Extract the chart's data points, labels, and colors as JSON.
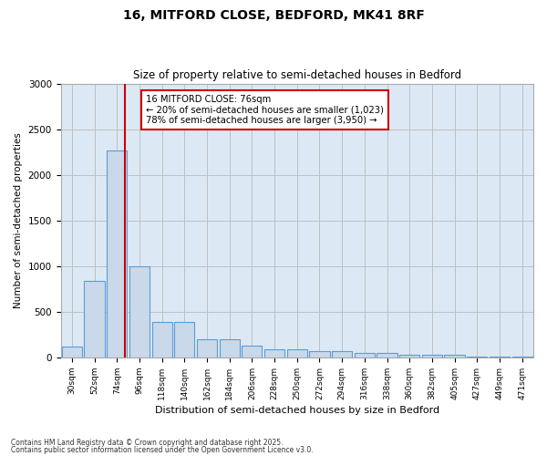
{
  "title_line1": "16, MITFORD CLOSE, BEDFORD, MK41 8RF",
  "title_line2": "Size of property relative to semi-detached houses in Bedford",
  "xlabel": "Distribution of semi-detached houses by size in Bedford",
  "ylabel": "Number of semi-detached properties",
  "categories": [
    "30sqm",
    "52sqm",
    "74sqm",
    "96sqm",
    "118sqm",
    "140sqm",
    "162sqm",
    "184sqm",
    "206sqm",
    "228sqm",
    "250sqm",
    "272sqm",
    "294sqm",
    "316sqm",
    "338sqm",
    "360sqm",
    "382sqm",
    "405sqm",
    "427sqm",
    "449sqm",
    "471sqm"
  ],
  "values": [
    120,
    840,
    2270,
    1000,
    390,
    390,
    200,
    200,
    130,
    90,
    90,
    70,
    70,
    50,
    50,
    30,
    30,
    30,
    10,
    5,
    5
  ],
  "bar_color": "#c9d9ea",
  "bar_edgecolor": "#5b9bd5",
  "grid_color": "#c0c0c0",
  "bg_color": "#dce9f5",
  "property_size_label": "16 MITFORD CLOSE: 76sqm",
  "pct_smaller": 20,
  "pct_smaller_count": 1023,
  "pct_larger": 78,
  "pct_larger_count": 3950,
  "annotation_box_color": "#cc0000",
  "vline_color": "#cc0000",
  "vline_x_index": 2.35,
  "ylim": [
    0,
    3000
  ],
  "yticks": [
    0,
    500,
    1000,
    1500,
    2000,
    2500,
    3000
  ],
  "footnote1": "Contains HM Land Registry data © Crown copyright and database right 2025.",
  "footnote2": "Contains public sector information licensed under the Open Government Licence v3.0."
}
